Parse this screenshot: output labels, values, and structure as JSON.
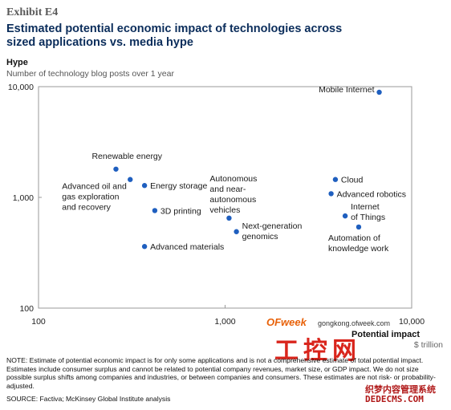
{
  "header": {
    "exhibit": "Exhibit E4",
    "title": "Estimated potential economic impact of technologies across sized applications vs. media hype"
  },
  "chart_data": {
    "type": "scatter",
    "title": "Estimated potential economic impact of technologies across sized applications vs. media hype",
    "ylabel": "Hype",
    "ylabel_sub": "Number of technology blog posts over 1 year",
    "xlabel": "Potential impact",
    "xlabel_sub": "$ trillion",
    "x_scale": "log",
    "y_scale": "log",
    "xlim": [
      100,
      10000
    ],
    "ylim": [
      100,
      10000
    ],
    "x_ticks": [
      "100",
      "1,000",
      "10,000"
    ],
    "y_ticks": [
      "10,000",
      "1,000",
      "100"
    ],
    "grid": false,
    "marker_color": "#1f5fbf",
    "points": [
      {
        "label": "Mobile Internet",
        "x": 6700,
        "y": 8900
      },
      {
        "label": "Renewable energy",
        "x": 260,
        "y": 1800
      },
      {
        "label": "Advanced oil and gas exploration and recovery",
        "x": 310,
        "y": 1450
      },
      {
        "label": "Energy storage",
        "x": 370,
        "y": 1280
      },
      {
        "label": "3D printing",
        "x": 420,
        "y": 760
      },
      {
        "label": "Advanced materials",
        "x": 370,
        "y": 360
      },
      {
        "label": "Autonomous and near-autonomous vehicles",
        "x": 1050,
        "y": 650
      },
      {
        "label": "Next-generation genomics",
        "x": 1150,
        "y": 490
      },
      {
        "label": "Cloud",
        "x": 3900,
        "y": 1450
      },
      {
        "label": "Advanced robotics",
        "x": 3700,
        "y": 1080
      },
      {
        "label": "Internet of Things",
        "x": 4400,
        "y": 680
      },
      {
        "label": "Automation of knowledge work",
        "x": 5200,
        "y": 540
      }
    ]
  },
  "footer": {
    "note": "NOTE: Estimate of potential economic impact is for only some applications and is not a comprehensive estimate of total potential impact. Estimates include consumer surplus and cannot be related to potential company revenues, market size, or GDP impact. We do not size possible surplus shifts among companies and industries, or between companies and consumers. These estimates are not risk- or probability-adjusted.",
    "source": "SOURCE: Factiva; McKinsey Global Institute analysis"
  },
  "watermark": {
    "logo": "OFweek",
    "url": "gongkong.ofweek.com",
    "cn": "工控网",
    "bottom1": "织梦内容管理系统",
    "bottom2": "DEDECMS.COM"
  }
}
